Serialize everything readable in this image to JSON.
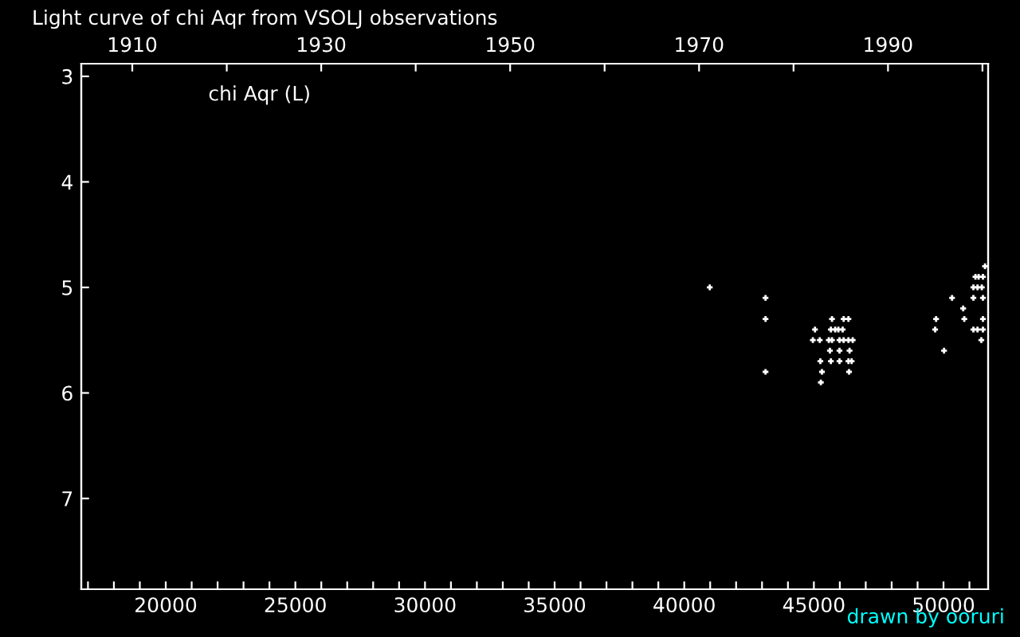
{
  "chart_data": {
    "type": "scatter",
    "title": "Light curve of chi Aqr from VSOLJ observations",
    "annotations": [
      "chi Aqr (L)",
      "drawn by ooruri"
    ],
    "series": [
      {
        "color": "#ffffff",
        "x": [
          40984,
          43135,
          43135,
          43135,
          45699,
          46148,
          46333,
          45042,
          45656,
          45822,
          45945,
          46111,
          44961,
          45226,
          45576,
          45699,
          45988,
          46148,
          46333,
          46499,
          45619,
          45988,
          46376,
          45250,
          45656,
          45988,
          46333,
          46456,
          45312,
          46357,
          45269,
          51601,
          51232,
          51355,
          51521,
          51152,
          51312,
          51478,
          50329,
          51152,
          51521,
          50759,
          49714,
          50802,
          51521,
          49677,
          51152,
          51312,
          51521,
          51459,
          50021
        ],
        "values": [
          5.0,
          5.1,
          5.3,
          5.8,
          5.3,
          5.3,
          5.3,
          5.4,
          5.4,
          5.4,
          5.4,
          5.4,
          5.5,
          5.5,
          5.5,
          5.5,
          5.5,
          5.5,
          5.5,
          5.5,
          5.6,
          5.6,
          5.6,
          5.7,
          5.7,
          5.7,
          5.7,
          5.7,
          5.8,
          5.8,
          5.9,
          4.8,
          4.9,
          4.9,
          4.9,
          5.0,
          5.0,
          5.0,
          5.1,
          5.1,
          5.1,
          5.2,
          5.3,
          5.3,
          5.3,
          5.4,
          5.4,
          5.4,
          5.4,
          5.5,
          5.6
        ]
      }
    ],
    "marker": "cross",
    "grid": false,
    "legend": false,
    "xlim": [
      16742,
      51721
    ],
    "xticks": [
      {
        "value": 17000,
        "label": null
      },
      {
        "value": 18000,
        "label": null
      },
      {
        "value": 19000,
        "label": null
      },
      20000,
      {
        "value": 21000,
        "label": null
      },
      {
        "value": 22000,
        "label": null
      },
      {
        "value": 23000,
        "label": null
      },
      {
        "value": 24000,
        "label": null
      },
      25000,
      {
        "value": 26000,
        "label": null
      },
      {
        "value": 27000,
        "label": null
      },
      {
        "value": 28000,
        "label": null
      },
      {
        "value": 29000,
        "label": null
      },
      30000,
      {
        "value": 31000,
        "label": null
      },
      {
        "value": 32000,
        "label": null
      },
      {
        "value": 33000,
        "label": null
      },
      {
        "value": 34000,
        "label": null
      },
      35000,
      {
        "value": 36000,
        "label": null
      },
      {
        "value": 37000,
        "label": null
      },
      {
        "value": 38000,
        "label": null
      },
      {
        "value": 39000,
        "label": null
      },
      40000,
      {
        "value": 41000,
        "label": null
      },
      {
        "value": 42000,
        "label": null
      },
      {
        "value": 43000,
        "label": null
      },
      {
        "value": 44000,
        "label": null
      },
      45000,
      {
        "value": 46000,
        "label": null
      },
      {
        "value": 47000,
        "label": null
      },
      {
        "value": 48000,
        "label": null
      },
      {
        "value": 49000,
        "label": null
      },
      50000,
      {
        "value": 51000,
        "label": null
      }
    ],
    "x2lim": [
      1904.6,
      2000.6
    ],
    "x2ticks": [
      1910,
      {
        "value": 1920,
        "label": null
      },
      1930,
      {
        "value": 1940,
        "label": null
      },
      1950,
      {
        "value": 1960,
        "label": null
      },
      1970,
      {
        "value": 1980,
        "label": null
      },
      1990,
      {
        "value": 2000,
        "label": null
      }
    ],
    "ylim": [
      7.86,
      2.88
    ],
    "yticks": [
      3,
      4,
      5,
      6,
      7
    ]
  }
}
